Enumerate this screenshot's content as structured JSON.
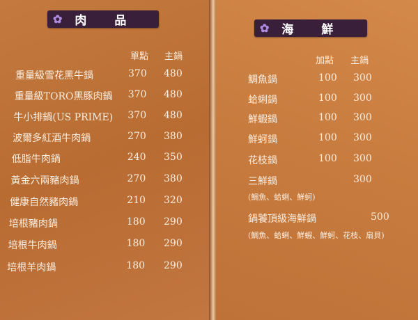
{
  "meat": {
    "title": "肉品",
    "col1": "單點",
    "col2": "主鍋",
    "items": [
      {
        "name": "重量級雪花黑牛鍋",
        "single": "370",
        "main": "480"
      },
      {
        "name": "重量級TORO黑豚肉鍋",
        "single": "370",
        "main": "480"
      },
      {
        "name": "牛小排鍋(US PRIME)",
        "single": "370",
        "main": "480"
      },
      {
        "name": "波爾多紅酒牛肉鍋",
        "single": "270",
        "main": "380"
      },
      {
        "name": "低脂牛肉鍋",
        "single": "240",
        "main": "350"
      },
      {
        "name": "黃金六兩豬肉鍋",
        "single": "270",
        "main": "380"
      },
      {
        "name": "健康自然豬肉鍋",
        "single": "210",
        "main": "320"
      },
      {
        "name": "培根豬肉鍋",
        "single": "180",
        "main": "290"
      },
      {
        "name": "培根牛肉鍋",
        "single": "180",
        "main": "290"
      },
      {
        "name": "培根羊肉鍋",
        "single": "180",
        "main": "290"
      }
    ]
  },
  "seafood": {
    "title": "海鮮",
    "col1": "加點",
    "col2": "主鍋",
    "items": [
      {
        "name": "鯛魚鍋",
        "add": "100",
        "main": "300"
      },
      {
        "name": "蛤蜊鍋",
        "add": "100",
        "main": "300"
      },
      {
        "name": "鮮蝦鍋",
        "add": "100",
        "main": "300"
      },
      {
        "name": "鮮蚵鍋",
        "add": "100",
        "main": "300"
      },
      {
        "name": "花枝鍋",
        "add": "100",
        "main": "300"
      },
      {
        "name": "三鮮鍋",
        "add": "",
        "main": "300",
        "note": "(鯛魚、蛤蜊、鮮蚵)"
      },
      {
        "name": "鍋饕頂級海鮮鍋",
        "add": "",
        "main": "500",
        "note": "(鯛魚、蛤蜊、鮮蝦、鮮蚵、花枝、扇貝)"
      }
    ]
  },
  "colors": {
    "title_bar": "#3a1f3a",
    "paper": "#c47a3e",
    "text": "#fbeee0"
  },
  "icons": {
    "title": "flower-icon"
  }
}
